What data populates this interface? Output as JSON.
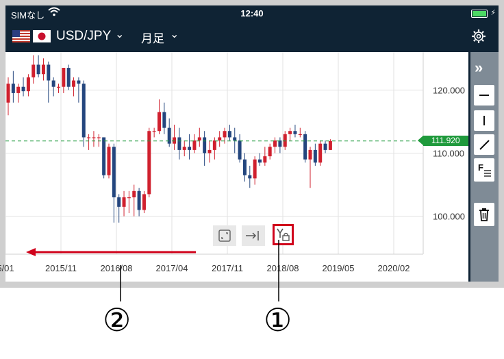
{
  "status_bar": {
    "carrier": "SIMなし",
    "time": "12:40"
  },
  "toolbar": {
    "symbol": "USD/JPY",
    "period": "月足"
  },
  "chart": {
    "current_price": "111.920",
    "y_ticks": [
      {
        "label": "120.000",
        "value": 120
      },
      {
        "label": "110.000",
        "value": 110
      },
      {
        "label": "100.000",
        "value": 100
      }
    ],
    "x_ticks": [
      "5/01",
      "2015/11",
      "2016/08",
      "2017/04",
      "2017/11",
      "2018/08",
      "2019/05",
      "2020/02"
    ]
  },
  "chart_data": {
    "type": "candlestick",
    "ylim": [
      94,
      126
    ],
    "current_price": 111.92,
    "candles": [
      {
        "o": 118,
        "c": 121,
        "h": 122,
        "l": 116
      },
      {
        "o": 121,
        "c": 119.5,
        "h": 123,
        "l": 118
      },
      {
        "o": 119.5,
        "c": 120.5,
        "h": 121,
        "l": 118
      },
      {
        "o": 120.5,
        "c": 119.8,
        "h": 122,
        "l": 119
      },
      {
        "o": 119.8,
        "c": 122,
        "h": 122.5,
        "l": 119
      },
      {
        "o": 122,
        "c": 124,
        "h": 125.5,
        "l": 121
      },
      {
        "o": 124,
        "c": 122.5,
        "h": 125.5,
        "l": 122
      },
      {
        "o": 122.5,
        "c": 124,
        "h": 125,
        "l": 121.5
      },
      {
        "o": 124,
        "c": 121.5,
        "h": 124.5,
        "l": 118
      },
      {
        "o": 121.5,
        "c": 120.5,
        "h": 122,
        "l": 119
      },
      {
        "o": 120.5,
        "c": 120.5,
        "h": 121,
        "l": 119.5
      },
      {
        "o": 120.5,
        "c": 123.5,
        "h": 123.5,
        "l": 119.5
      },
      {
        "o": 123.5,
        "c": 120.5,
        "h": 124,
        "l": 120
      },
      {
        "o": 120.5,
        "c": 121.5,
        "h": 122,
        "l": 119
      },
      {
        "o": 121.5,
        "c": 121,
        "h": 122,
        "l": 118
      },
      {
        "o": 121,
        "c": 112.5,
        "h": 121.5,
        "l": 111
      },
      {
        "o": 112.5,
        "c": 112.5,
        "h": 113,
        "l": 110.5
      },
      {
        "o": 112.5,
        "c": 112.5,
        "h": 113.5,
        "l": 111
      },
      {
        "o": 112.5,
        "c": 112.5,
        "h": 113,
        "l": 111
      },
      {
        "o": 112.5,
        "c": 106.5,
        "h": 112.5,
        "l": 106
      },
      {
        "o": 106.5,
        "c": 111,
        "h": 111.5,
        "l": 106
      },
      {
        "o": 111,
        "c": 103,
        "h": 111.5,
        "l": 99
      },
      {
        "o": 103,
        "c": 101.5,
        "h": 103.5,
        "l": 99
      },
      {
        "o": 101.5,
        "c": 103,
        "h": 104,
        "l": 100
      },
      {
        "o": 103,
        "c": 103,
        "h": 104,
        "l": 100.5
      },
      {
        "o": 103,
        "c": 104,
        "h": 105,
        "l": 100
      },
      {
        "o": 104,
        "c": 101,
        "h": 104.5,
        "l": 100
      },
      {
        "o": 101,
        "c": 103.5,
        "h": 104,
        "l": 100.5
      },
      {
        "o": 103.5,
        "c": 113.5,
        "h": 114,
        "l": 103
      },
      {
        "o": 113.5,
        "c": 113.5,
        "h": 114,
        "l": 112.5
      },
      {
        "o": 113.5,
        "c": 116.5,
        "h": 118.5,
        "l": 113
      },
      {
        "o": 116.5,
        "c": 114,
        "h": 118,
        "l": 113
      },
      {
        "o": 114,
        "c": 111.5,
        "h": 115.5,
        "l": 111
      },
      {
        "o": 111.5,
        "c": 112.5,
        "h": 114.5,
        "l": 110.5
      },
      {
        "o": 112.5,
        "c": 110.5,
        "h": 114,
        "l": 109
      },
      {
        "o": 110.5,
        "c": 111,
        "h": 112,
        "l": 109.5
      },
      {
        "o": 111,
        "c": 110.5,
        "h": 113,
        "l": 109
      },
      {
        "o": 110.5,
        "c": 112,
        "h": 113,
        "l": 110
      },
      {
        "o": 112,
        "c": 112.5,
        "h": 114,
        "l": 111
      },
      {
        "o": 112.5,
        "c": 110,
        "h": 113.5,
        "l": 108
      },
      {
        "o": 110,
        "c": 110.5,
        "h": 112,
        "l": 108.5
      },
      {
        "o": 110.5,
        "c": 112,
        "h": 112.5,
        "l": 109
      },
      {
        "o": 112,
        "c": 112.5,
        "h": 113.5,
        "l": 111
      },
      {
        "o": 112.5,
        "c": 113.5,
        "h": 114,
        "l": 111.5
      },
      {
        "o": 113.5,
        "c": 112.5,
        "h": 114.5,
        "l": 112
      },
      {
        "o": 112.5,
        "c": 112,
        "h": 114,
        "l": 110
      },
      {
        "o": 112,
        "c": 109,
        "h": 113,
        "l": 108.5
      },
      {
        "o": 109,
        "c": 106.5,
        "h": 110,
        "l": 105.5
      },
      {
        "o": 106.5,
        "c": 106,
        "h": 108,
        "l": 104.5
      },
      {
        "o": 106,
        "c": 109,
        "h": 109.5,
        "l": 105
      },
      {
        "o": 109,
        "c": 108.5,
        "h": 110,
        "l": 108
      },
      {
        "o": 108.5,
        "c": 109.5,
        "h": 111,
        "l": 108
      },
      {
        "o": 109.5,
        "c": 111,
        "h": 111.5,
        "l": 109
      },
      {
        "o": 111,
        "c": 112,
        "h": 112.5,
        "l": 110
      },
      {
        "o": 112,
        "c": 111,
        "h": 112.5,
        "l": 110
      },
      {
        "o": 111,
        "c": 113,
        "h": 113.5,
        "l": 110.5
      },
      {
        "o": 113,
        "c": 113.5,
        "h": 114,
        "l": 112
      },
      {
        "o": 113.5,
        "c": 113,
        "h": 114.5,
        "l": 112.5
      },
      {
        "o": 113,
        "c": 113,
        "h": 114,
        "l": 112.5
      },
      {
        "o": 113,
        "c": 109,
        "h": 113.5,
        "l": 108.5
      },
      {
        "o": 109,
        "c": 110.5,
        "h": 111,
        "l": 104.5
      },
      {
        "o": 110.5,
        "c": 108.5,
        "h": 111.5,
        "l": 108
      },
      {
        "o": 108.5,
        "c": 111.5,
        "h": 112,
        "l": 108
      },
      {
        "o": 111.5,
        "c": 110.5,
        "h": 112,
        "l": 110
      },
      {
        "o": 110.5,
        "c": 111.9,
        "h": 112.2,
        "l": 110.5
      }
    ]
  },
  "colors": {
    "bull": "#d0202e",
    "bear": "#24467e",
    "price_line": "#1f9a3c",
    "header": "#0f2334",
    "highlight": "#d0021b"
  },
  "annotations": {
    "marker_1": "①",
    "marker_2": "②"
  },
  "icons": [
    "wifi-icon",
    "battery-icon",
    "us-flag-icon",
    "jp-flag-icon",
    "chevron-down-icon",
    "gear-icon",
    "expand-panel-icon",
    "horizontal-line-icon",
    "vertical-line-icon",
    "trend-line-icon",
    "fibonacci-icon",
    "trash-icon",
    "fullscreen-icon",
    "jump-to-latest-icon",
    "y-axis-lock-icon"
  ]
}
